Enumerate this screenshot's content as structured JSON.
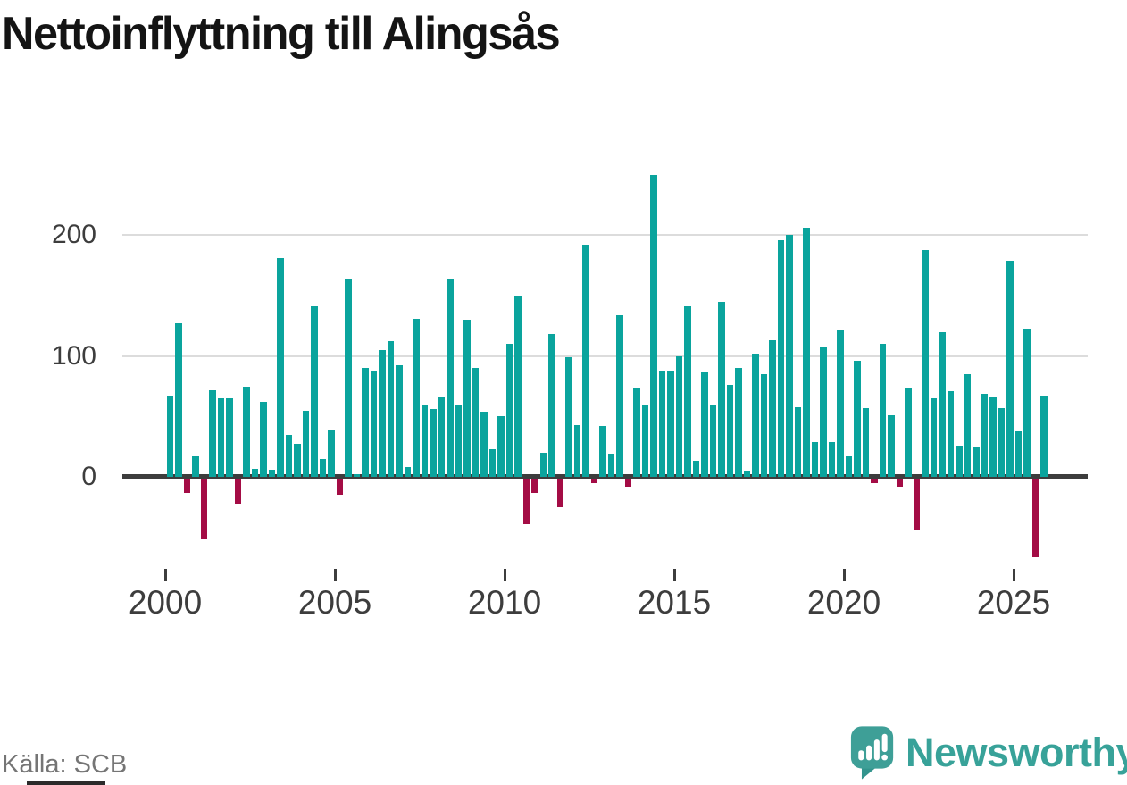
{
  "title": "Nettoinflyttning till Alingsås",
  "source": "Källa: SCB",
  "logo": {
    "text": "Newsworthy"
  },
  "chart_data": {
    "type": "bar",
    "title": "Nettoinflyttning till Alingsås",
    "xlabel": "",
    "ylabel": "",
    "x_tick_labels": [
      "2000",
      "2005",
      "2010",
      "2015",
      "2020",
      "2025"
    ],
    "y_ticks": [
      0,
      100,
      200
    ],
    "ylim": [
      -75,
      255
    ],
    "grid": "horizontal",
    "legend_position": "none",
    "positive_color": "#0aa49d",
    "negative_color": "#a40c45",
    "frequency": "quarterly",
    "categories": [
      "2000 Q1",
      "2000 Q2",
      "2000 Q3",
      "2000 Q4",
      "2001 Q1",
      "2001 Q2",
      "2001 Q3",
      "2001 Q4",
      "2002 Q1",
      "2002 Q2",
      "2002 Q3",
      "2002 Q4",
      "2003 Q1",
      "2003 Q2",
      "2003 Q3",
      "2003 Q4",
      "2004 Q1",
      "2004 Q2",
      "2004 Q3",
      "2004 Q4",
      "2005 Q1",
      "2005 Q2",
      "2005 Q3",
      "2005 Q4",
      "2006 Q1",
      "2006 Q2",
      "2006 Q3",
      "2006 Q4",
      "2007 Q1",
      "2007 Q2",
      "2007 Q3",
      "2007 Q4",
      "2008 Q1",
      "2008 Q2",
      "2008 Q3",
      "2008 Q4",
      "2009 Q1",
      "2009 Q2",
      "2009 Q3",
      "2009 Q4",
      "2010 Q1",
      "2010 Q2",
      "2010 Q3",
      "2010 Q4",
      "2011 Q1",
      "2011 Q2",
      "2011 Q3",
      "2011 Q4",
      "2012 Q1",
      "2012 Q2",
      "2012 Q3",
      "2012 Q4",
      "2013 Q1",
      "2013 Q2",
      "2013 Q3",
      "2013 Q4",
      "2014 Q1",
      "2014 Q2",
      "2014 Q3",
      "2014 Q4",
      "2015 Q1",
      "2015 Q2",
      "2015 Q3",
      "2015 Q4",
      "2016 Q1",
      "2016 Q2",
      "2016 Q3",
      "2016 Q4",
      "2017 Q1",
      "2017 Q2",
      "2017 Q3",
      "2017 Q4",
      "2018 Q1",
      "2018 Q2",
      "2018 Q3",
      "2018 Q4",
      "2019 Q1",
      "2019 Q2",
      "2019 Q3",
      "2019 Q4",
      "2020 Q1",
      "2020 Q2",
      "2020 Q3",
      "2020 Q4",
      "2021 Q1",
      "2021 Q2",
      "2021 Q3",
      "2021 Q4",
      "2022 Q1",
      "2022 Q2",
      "2022 Q3",
      "2022 Q4",
      "2023 Q1",
      "2023 Q2",
      "2023 Q3",
      "2023 Q4",
      "2024 Q1",
      "2024 Q2",
      "2024 Q3",
      "2024 Q4",
      "2025 Q1",
      "2025 Q2",
      "2025 Q3",
      "2025 Q4"
    ],
    "values": [
      67,
      127,
      -12,
      17,
      -50,
      72,
      65,
      65,
      -21,
      75,
      7,
      62,
      6,
      181,
      35,
      27,
      55,
      141,
      15,
      39,
      -13,
      164,
      2,
      90,
      88,
      105,
      112,
      92,
      8,
      131,
      60,
      56,
      66,
      164,
      60,
      130,
      90,
      54,
      23,
      50,
      110,
      149,
      -38,
      -12,
      20,
      118,
      -24,
      99,
      43,
      192,
      -4,
      42,
      19,
      134,
      -7,
      74,
      59,
      250,
      88,
      88,
      100,
      141,
      13,
      87,
      60,
      145,
      76,
      90,
      5,
      102,
      85,
      113,
      196,
      200,
      58,
      206,
      29,
      107,
      29,
      121,
      17,
      96,
      57,
      -4,
      110,
      51,
      -7,
      73,
      -42,
      188,
      65,
      120,
      71,
      26,
      85,
      25,
      69,
      66,
      57,
      179,
      38,
      123,
      -65,
      67
    ]
  }
}
